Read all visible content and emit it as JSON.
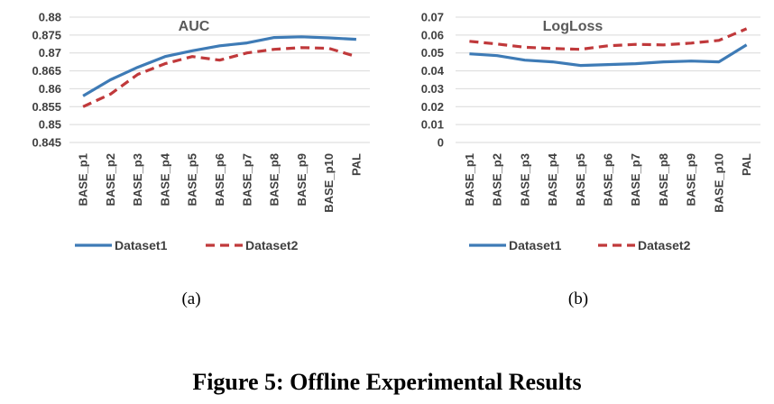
{
  "figure": {
    "caption": "Figure 5: Offline Experimental Results"
  },
  "colors": {
    "dataset1": "#3e7bb6",
    "dataset2": "#c0393b",
    "grid": "#d9d9d9"
  },
  "chart_data": [
    {
      "type": "line",
      "title": "AUC",
      "sublabel": "(a)",
      "categories": [
        "BASE_p1",
        "BASE_p2",
        "BASE_p3",
        "BASE_p4",
        "BASE_p5",
        "BASE_p6",
        "BASE_p7",
        "BASE_p8",
        "BASE_p9",
        "BASE_p10",
        "PAL"
      ],
      "ylim": [
        0.845,
        0.88
      ],
      "yticks": [
        "0.845",
        "0.85",
        "0.855",
        "0.86",
        "0.865",
        "0.87",
        "0.875",
        "0.88"
      ],
      "grid": true,
      "legend": "bottom",
      "series": [
        {
          "name": "Dataset1",
          "style": "solid",
          "values": [
            0.858,
            0.8625,
            0.866,
            0.869,
            0.8706,
            0.872,
            0.8728,
            0.8743,
            0.8745,
            0.8742,
            0.8738
          ]
        },
        {
          "name": "Dataset2",
          "style": "dashed",
          "values": [
            0.855,
            0.8585,
            0.864,
            0.867,
            0.869,
            0.868,
            0.87,
            0.871,
            0.8715,
            0.8713,
            0.869
          ]
        }
      ]
    },
    {
      "type": "line",
      "title": "LogLoss",
      "sublabel": "(b)",
      "categories": [
        "BASE_p1",
        "BASE_p2",
        "BASE_p3",
        "BASE_p4",
        "BASE_p5",
        "BASE_p6",
        "BASE_p7",
        "BASE_p8",
        "BASE_p9",
        "BASE_p10",
        "PAL"
      ],
      "ylim": [
        0,
        0.07
      ],
      "yticks": [
        "0",
        "0.01",
        "0.02",
        "0.03",
        "0.04",
        "0.05",
        "0.06",
        "0.07"
      ],
      "grid": true,
      "legend": "bottom",
      "series": [
        {
          "name": "Dataset1",
          "style": "solid",
          "values": [
            0.0495,
            0.0485,
            0.046,
            0.045,
            0.043,
            0.0435,
            0.044,
            0.045,
            0.0455,
            0.045,
            0.0545
          ]
        },
        {
          "name": "Dataset2",
          "style": "dashed",
          "values": [
            0.0565,
            0.055,
            0.0532,
            0.0525,
            0.052,
            0.054,
            0.0548,
            0.0545,
            0.0555,
            0.057,
            0.0635
          ]
        }
      ]
    }
  ]
}
